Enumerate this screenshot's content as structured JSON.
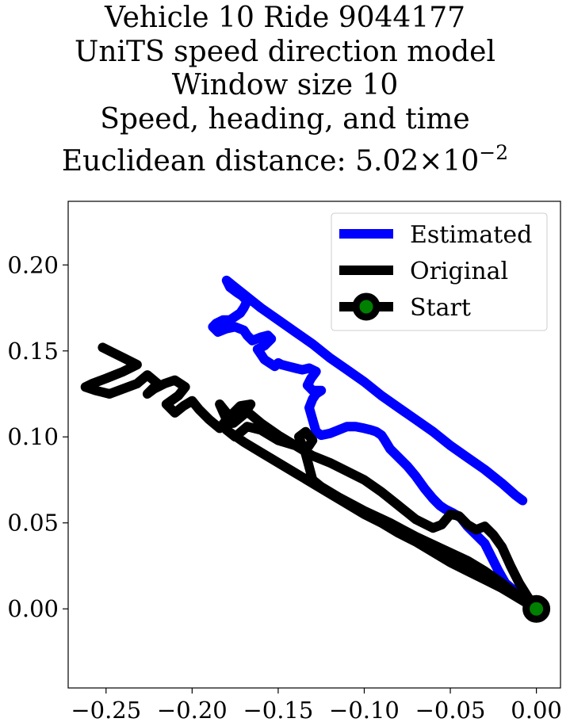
{
  "title_lines": [
    "Vehicle 10 Ride 9044177",
    "UniTS speed direction model",
    "Window size 10",
    "Speed, heading, and time"
  ],
  "title_metric_prefix": "Euclidean distance: 5.02",
  "title_metric_times": "×",
  "title_metric_base": "10",
  "title_metric_exponent": "−2",
  "chart_data": {
    "type": "line",
    "title": "Vehicle 10 Ride 9044177 / UniTS speed direction model / Window size 10 / Speed, heading, and time / Euclidean distance: 5.02×10^-2",
    "xlabel": "",
    "ylabel": "",
    "xlim": [
      -0.272,
      0.014
    ],
    "ylim": [
      -0.046,
      0.237
    ],
    "x_ticks": [
      -0.25,
      -0.2,
      -0.15,
      -0.1,
      -0.05,
      0.0
    ],
    "x_tick_labels": [
      "−0.25",
      "−0.20",
      "−0.15",
      "−0.10",
      "−0.05",
      "0.00"
    ],
    "y_ticks": [
      0.0,
      0.05,
      0.1,
      0.15,
      0.2
    ],
    "y_tick_labels": [
      "0.00",
      "0.05",
      "0.10",
      "0.15",
      "0.20"
    ],
    "grid": false,
    "legend_position": "top-right",
    "series": [
      {
        "name": "Estimated",
        "color": "#0000ff",
        "x": [
          0.0,
          -0.01,
          -0.018,
          -0.022,
          -0.026,
          -0.03,
          -0.035,
          -0.04,
          -0.044,
          -0.049,
          -0.053,
          -0.056,
          -0.058,
          -0.06,
          -0.065,
          -0.07,
          -0.075,
          -0.08,
          -0.085,
          -0.088,
          -0.09,
          -0.093,
          -0.096,
          -0.1,
          -0.105,
          -0.11,
          -0.115,
          -0.12,
          -0.125,
          -0.128,
          -0.13,
          -0.132,
          -0.13,
          -0.128,
          -0.125,
          -0.13,
          -0.133,
          -0.131,
          -0.128,
          -0.132,
          -0.136,
          -0.14,
          -0.144,
          -0.148,
          -0.15,
          -0.152,
          -0.155,
          -0.158,
          -0.16,
          -0.162,
          -0.158,
          -0.154,
          -0.156,
          -0.16,
          -0.165,
          -0.168,
          -0.17,
          -0.175,
          -0.18,
          -0.185,
          -0.188,
          -0.186,
          -0.182,
          -0.178,
          -0.175,
          -0.172,
          -0.17,
          -0.168,
          -0.171,
          -0.174,
          -0.178,
          -0.18,
          -0.175,
          -0.17,
          -0.165,
          -0.16,
          -0.15,
          -0.14,
          -0.13,
          -0.12,
          -0.11,
          -0.1,
          -0.09,
          -0.08,
          -0.07,
          -0.06,
          -0.05,
          -0.04,
          -0.03,
          -0.02,
          -0.012,
          -0.008
        ],
        "y": [
          0.0,
          0.008,
          0.015,
          0.022,
          0.03,
          0.038,
          0.043,
          0.048,
          0.053,
          0.056,
          0.058,
          0.06,
          0.062,
          0.064,
          0.07,
          0.077,
          0.083,
          0.088,
          0.093,
          0.098,
          0.101,
          0.103,
          0.104,
          0.105,
          0.106,
          0.106,
          0.104,
          0.102,
          0.101,
          0.103,
          0.11,
          0.117,
          0.122,
          0.125,
          0.127,
          0.127,
          0.13,
          0.134,
          0.138,
          0.14,
          0.139,
          0.14,
          0.141,
          0.142,
          0.143,
          0.141,
          0.143,
          0.145,
          0.148,
          0.151,
          0.153,
          0.157,
          0.159,
          0.158,
          0.156,
          0.159,
          0.162,
          0.164,
          0.163,
          0.161,
          0.164,
          0.166,
          0.168,
          0.168,
          0.17,
          0.172,
          0.175,
          0.179,
          0.182,
          0.184,
          0.187,
          0.191,
          0.187,
          0.183,
          0.179,
          0.175,
          0.168,
          0.161,
          0.154,
          0.146,
          0.139,
          0.132,
          0.124,
          0.117,
          0.11,
          0.103,
          0.095,
          0.088,
          0.081,
          0.073,
          0.066,
          0.063
        ]
      },
      {
        "name": "Original",
        "color": "#000000",
        "x": [
          0.0,
          -0.01,
          -0.02,
          -0.03,
          -0.04,
          -0.05,
          -0.06,
          -0.07,
          -0.08,
          -0.09,
          -0.1,
          -0.11,
          -0.12,
          -0.13,
          -0.14,
          -0.15,
          -0.16,
          -0.17,
          -0.18,
          -0.178,
          -0.172,
          -0.166,
          -0.16,
          -0.15,
          -0.14,
          -0.13,
          -0.12,
          -0.11,
          -0.1,
          -0.09,
          -0.08,
          -0.07,
          -0.06,
          -0.055,
          -0.05,
          -0.045,
          -0.04,
          -0.035,
          -0.03,
          -0.025,
          -0.02,
          -0.015,
          -0.01,
          -0.005,
          0.0,
          -0.01,
          -0.02,
          -0.03,
          -0.04,
          -0.055,
          -0.07,
          -0.085,
          -0.1,
          -0.115,
          -0.125,
          -0.13,
          -0.134,
          -0.138,
          -0.134,
          -0.13,
          -0.134,
          -0.14,
          -0.15,
          -0.16,
          -0.168,
          -0.175,
          -0.18,
          -0.178,
          -0.172,
          -0.166,
          -0.17,
          -0.176,
          -0.18,
          -0.184,
          -0.18,
          -0.184,
          -0.19,
          -0.196,
          -0.2,
          -0.205,
          -0.21,
          -0.215,
          -0.208,
          -0.204,
          -0.21,
          -0.216,
          -0.222,
          -0.226,
          -0.22,
          -0.226,
          -0.232,
          -0.24,
          -0.248,
          -0.256,
          -0.262,
          -0.258,
          -0.25,
          -0.24,
          -0.232,
          -0.24,
          -0.248,
          -0.252
        ],
        "y": [
          0.0,
          0.006,
          0.012,
          0.017,
          0.022,
          0.027,
          0.033,
          0.039,
          0.044,
          0.05,
          0.055,
          0.061,
          0.067,
          0.073,
          0.079,
          0.085,
          0.091,
          0.097,
          0.104,
          0.112,
          0.118,
          0.113,
          0.108,
          0.101,
          0.095,
          0.089,
          0.085,
          0.08,
          0.075,
          0.068,
          0.06,
          0.052,
          0.047,
          0.049,
          0.055,
          0.054,
          0.049,
          0.046,
          0.048,
          0.043,
          0.036,
          0.025,
          0.015,
          0.007,
          0.0,
          0.007,
          0.015,
          0.022,
          0.028,
          0.035,
          0.042,
          0.05,
          0.057,
          0.065,
          0.071,
          0.075,
          0.09,
          0.1,
          0.103,
          0.098,
          0.092,
          0.095,
          0.098,
          0.104,
          0.106,
          0.1,
          0.104,
          0.112,
          0.118,
          0.119,
          0.113,
          0.108,
          0.114,
          0.119,
          0.11,
          0.105,
          0.11,
          0.116,
          0.121,
          0.118,
          0.114,
          0.119,
          0.124,
          0.129,
          0.133,
          0.131,
          0.128,
          0.125,
          0.131,
          0.136,
          0.131,
          0.128,
          0.125,
          0.127,
          0.129,
          0.131,
          0.134,
          0.138,
          0.142,
          0.146,
          0.15,
          0.152
        ]
      }
    ],
    "start_point": {
      "name": "Start",
      "x": 0.0,
      "y": 0.0,
      "edge_color": "#000000",
      "face_color": "#008000"
    }
  }
}
